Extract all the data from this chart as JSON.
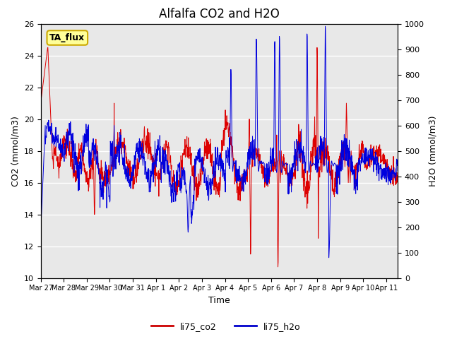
{
  "title": "Alfalfa CO2 and H2O",
  "xlabel": "Time",
  "ylabel_left": "CO2 (mmol/m3)",
  "ylabel_right": "H2O (mmol/m3)",
  "ylim_left": [
    10,
    26
  ],
  "ylim_right": [
    0,
    1000
  ],
  "yticks_left": [
    10,
    12,
    14,
    16,
    18,
    20,
    22,
    24,
    26
  ],
  "yticks_right": [
    0,
    100,
    200,
    300,
    400,
    500,
    600,
    700,
    800,
    900,
    1000
  ],
  "xtick_labels": [
    "Mar 27",
    "Mar 28",
    "Mar 29",
    "Mar 30",
    "Mar 31",
    "Apr 1",
    "Apr 2",
    "Apr 3",
    "Apr 4",
    "Apr 5",
    "Apr 6",
    "Apr 7",
    "Apr 8",
    "Apr 9",
    "Apr 10",
    "Apr 11"
  ],
  "legend_labels": [
    "li75_co2",
    "li75_h2o"
  ],
  "legend_colors": [
    "#cc0000",
    "#0000cc"
  ],
  "annotation_text": "TA_flux",
  "annotation_bg": "#ffff99",
  "annotation_border": "#ccaa00",
  "line_color_co2": "#dd0000",
  "line_color_h2o": "#0000dd",
  "background_color": "#e8e8e8",
  "plot_bg": "#e8e8e8",
  "title_fontsize": 12,
  "axis_fontsize": 9,
  "tick_fontsize": 8,
  "legend_fontsize": 9
}
